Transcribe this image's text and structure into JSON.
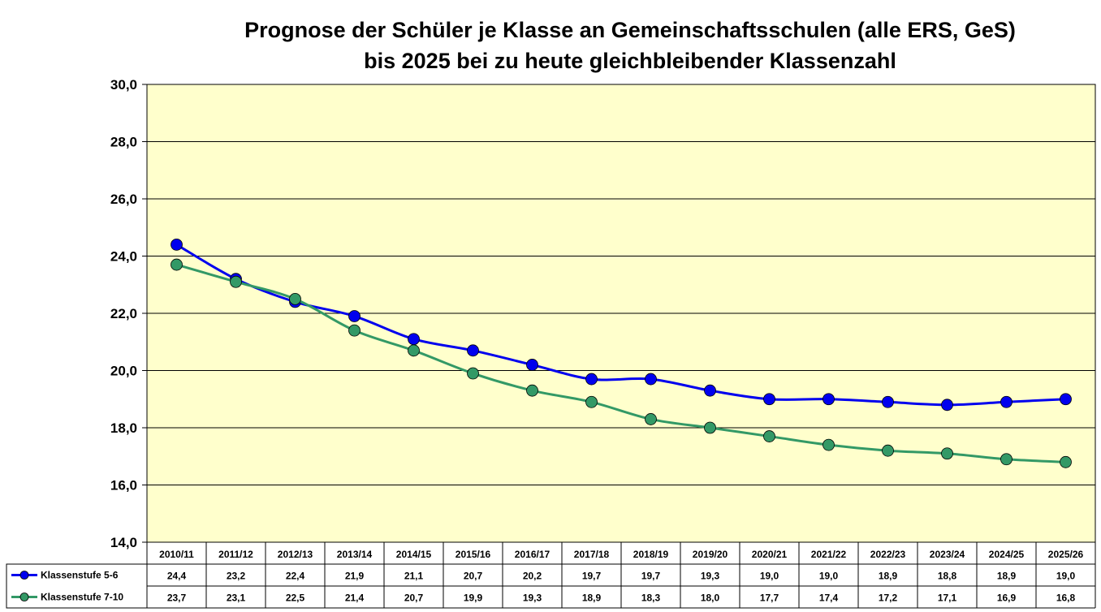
{
  "chart_data": {
    "type": "line",
    "title_line1": "Prognose der Schüler je Klasse an Gemeinschaftsschulen (alle ERS, GeS)",
    "title_line2": "bis 2025 bei zu heute gleichbleibender Klassenzahl",
    "categories": [
      "2010/11",
      "2011/12",
      "2012/13",
      "2013/14",
      "2014/15",
      "2015/16",
      "2016/17",
      "2017/18",
      "2018/19",
      "2019/20",
      "2020/21",
      "2021/22",
      "2022/23",
      "2023/24",
      "2024/25",
      "2025/26"
    ],
    "ylim": [
      14,
      30
    ],
    "yticks": [
      14,
      16,
      18,
      20,
      22,
      24,
      26,
      28,
      30
    ],
    "ytick_labels": [
      "14,0",
      "16,0",
      "18,0",
      "20,0",
      "22,0",
      "24,0",
      "26,0",
      "28,0",
      "30,0"
    ],
    "grid": true,
    "plot_background": "#ffffcc",
    "legend_placement": "data-table",
    "series": [
      {
        "name": "Klassenstufe 5-6",
        "color": "#0000ee",
        "values": [
          24.4,
          23.2,
          22.4,
          21.9,
          21.1,
          20.7,
          20.2,
          19.7,
          19.7,
          19.3,
          19.0,
          19.0,
          18.9,
          18.8,
          18.9,
          19.0
        ],
        "labels": [
          "24,4",
          "23,2",
          "22,4",
          "21,9",
          "21,1",
          "20,7",
          "20,2",
          "19,7",
          "19,7",
          "19,3",
          "19,0",
          "19,0",
          "18,9",
          "18,8",
          "18,9",
          "19,0"
        ]
      },
      {
        "name": "Klassenstufe 7-10",
        "color": "#339966",
        "values": [
          23.7,
          23.1,
          22.5,
          21.4,
          20.7,
          19.9,
          19.3,
          18.9,
          18.3,
          18.0,
          17.7,
          17.4,
          17.2,
          17.1,
          16.9,
          16.8
        ],
        "labels": [
          "23,7",
          "23,1",
          "22,5",
          "21,4",
          "20,7",
          "19,9",
          "19,3",
          "18,9",
          "18,3",
          "18,0",
          "17,7",
          "17,4",
          "17,2",
          "17,1",
          "16,9",
          "16,8"
        ]
      }
    ]
  }
}
